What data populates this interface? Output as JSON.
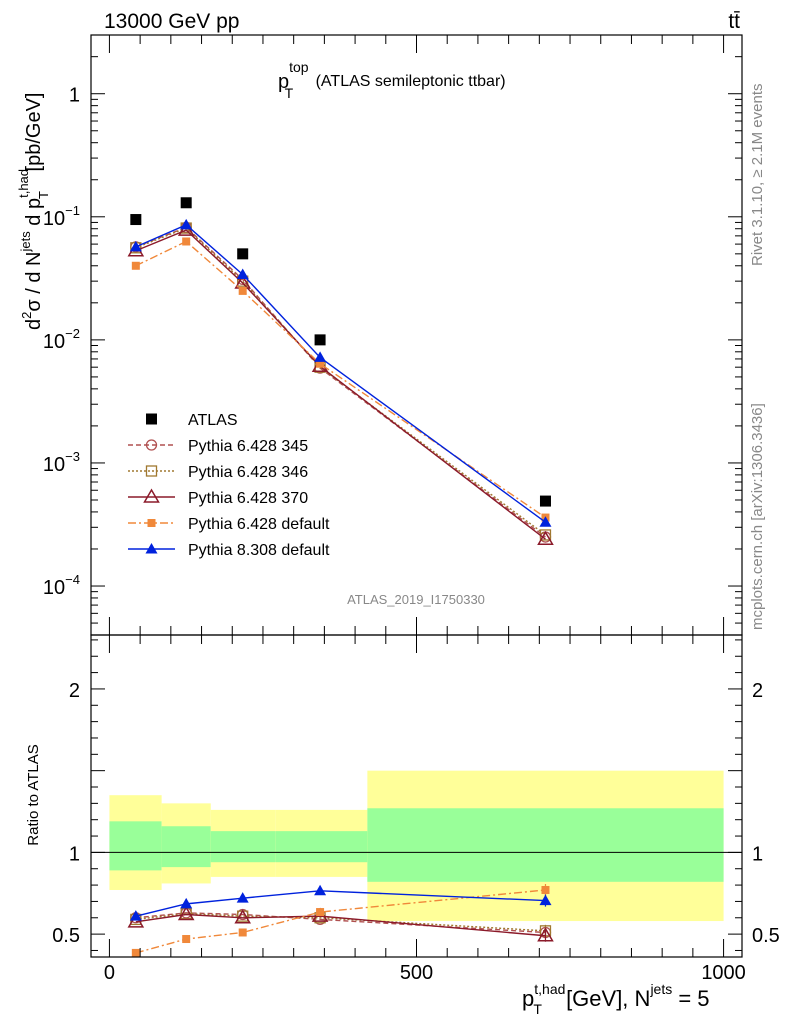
{
  "header": {
    "left": "13000 GeV pp",
    "right": "tt̄",
    "right_side_top": "Rivet 3.1.10, ≥ 2.1M events",
    "right_side_bottom": "mcplots.cern.ch [arXiv:1306.3436]"
  },
  "main_title": {
    "base": "p",
    "sub": "T",
    "sup": "top",
    "rest": " (ATLAS semileptonic ttbar)"
  },
  "watermark": "ATLAS_2019_I1750330",
  "colors": {
    "atlas": "#000000",
    "p345": "#b05050",
    "p346": "#a07830",
    "p370": "#8b1a2a",
    "p6def": "#f0883a",
    "p8def": "#0022dd",
    "band_outer": "#ffff99",
    "band_inner": "#99ff99"
  },
  "chart_data": [
    {
      "type": "scatter",
      "name": "main",
      "yscale": "log",
      "xlim": [
        -30,
        1030
      ],
      "ylim": [
        4e-05,
        3
      ],
      "ytick_labels": [
        {
          "value": 1,
          "base": "1",
          "exp": ""
        },
        {
          "value": 0.1,
          "base": "10",
          "exp": "−1"
        },
        {
          "value": 0.01,
          "base": "10",
          "exp": "−2"
        },
        {
          "value": 0.001,
          "base": "10",
          "exp": "−3"
        },
        {
          "value": 0.0001,
          "base": "10",
          "exp": "−4"
        }
      ],
      "ylabel_parts": {
        "d2s": "d",
        "two": "2",
        "sig": "σ / d N",
        "jets": "jets",
        "dp": " d p",
        "T": "T",
        "thad": "t,had",
        "unit": " [pb/GeV]"
      },
      "legend_position": "middle-left",
      "legend": [
        {
          "key": "atlas",
          "label": "ATLAS"
        },
        {
          "key": "p345",
          "label": "Pythia 6.428 345"
        },
        {
          "key": "p346",
          "label": "Pythia 6.428 346"
        },
        {
          "key": "p370",
          "label": "Pythia 6.428 370"
        },
        {
          "key": "p6def",
          "label": "Pythia 6.428 default"
        },
        {
          "key": "p8def",
          "label": "Pythia 8.308 default"
        }
      ],
      "x": [
        43,
        125,
        217,
        343,
        710
      ],
      "xerr": [
        [
          0,
          85
        ],
        [
          85,
          165
        ],
        [
          165,
          270
        ],
        [
          270,
          420
        ],
        [
          420,
          1000
        ]
      ],
      "series": [
        {
          "key": "atlas",
          "marker": "square",
          "values": [
            0.095,
            0.13,
            0.05,
            0.01,
            0.00049
          ]
        },
        {
          "key": "p345",
          "marker": "circle",
          "dash": "5,3",
          "values": [
            0.057,
            0.082,
            0.031,
            0.0059,
            0.00025
          ]
        },
        {
          "key": "p346",
          "marker": "opensquare",
          "dash": "2,2",
          "values": [
            0.056,
            0.081,
            0.03,
            0.006,
            0.00026
          ]
        },
        {
          "key": "p370",
          "marker": "triangle",
          "dash": "",
          "values": [
            0.053,
            0.078,
            0.029,
            0.0061,
            0.00024
          ]
        },
        {
          "key": "p6def",
          "marker": "smallsquare",
          "dash": "8,3,2,3",
          "values": [
            0.04,
            0.063,
            0.025,
            0.0064,
            0.00036
          ]
        },
        {
          "key": "p8def",
          "marker": "filledtriangle",
          "dash": "",
          "values": [
            0.057,
            0.086,
            0.034,
            0.0072,
            0.00033
          ]
        }
      ]
    },
    {
      "type": "line",
      "name": "ratio",
      "ylabel": "Ratio to ATLAS",
      "xlabel_parts": {
        "p": "p",
        "T": "T",
        "thad": "t,had",
        "unit": " [GeV], N",
        "jets": "jets",
        "eq": " = 5"
      },
      "xlim": [
        -30,
        1030
      ],
      "ylim": [
        0.36,
        2.33
      ],
      "xticks": [
        0,
        500,
        1000
      ],
      "yticks": [
        0.5,
        1,
        2
      ],
      "bands": [
        {
          "x0": 0,
          "x1": 85,
          "outer": [
            0.77,
            1.35
          ],
          "inner": [
            0.89,
            1.19
          ]
        },
        {
          "x0": 85,
          "x1": 165,
          "outer": [
            0.81,
            1.3
          ],
          "inner": [
            0.91,
            1.16
          ]
        },
        {
          "x0": 165,
          "x1": 270,
          "outer": [
            0.85,
            1.26
          ],
          "inner": [
            0.94,
            1.13
          ]
        },
        {
          "x0": 270,
          "x1": 420,
          "outer": [
            0.85,
            1.26
          ],
          "inner": [
            0.94,
            1.13
          ]
        },
        {
          "x0": 420,
          "x1": 1000,
          "outer": [
            0.58,
            1.5
          ],
          "inner": [
            0.82,
            1.27
          ]
        }
      ],
      "series": [
        {
          "key": "p345",
          "values": [
            0.6,
            0.63,
            0.62,
            0.59,
            0.51
          ]
        },
        {
          "key": "p346",
          "values": [
            0.59,
            0.625,
            0.61,
            0.6,
            0.52
          ]
        },
        {
          "key": "p370",
          "values": [
            0.575,
            0.62,
            0.6,
            0.61,
            0.49
          ]
        },
        {
          "key": "p6def",
          "values": [
            0.385,
            0.47,
            0.51,
            0.635,
            0.77
          ]
        },
        {
          "key": "p8def",
          "values": [
            0.61,
            0.685,
            0.72,
            0.765,
            0.705
          ]
        }
      ]
    }
  ]
}
